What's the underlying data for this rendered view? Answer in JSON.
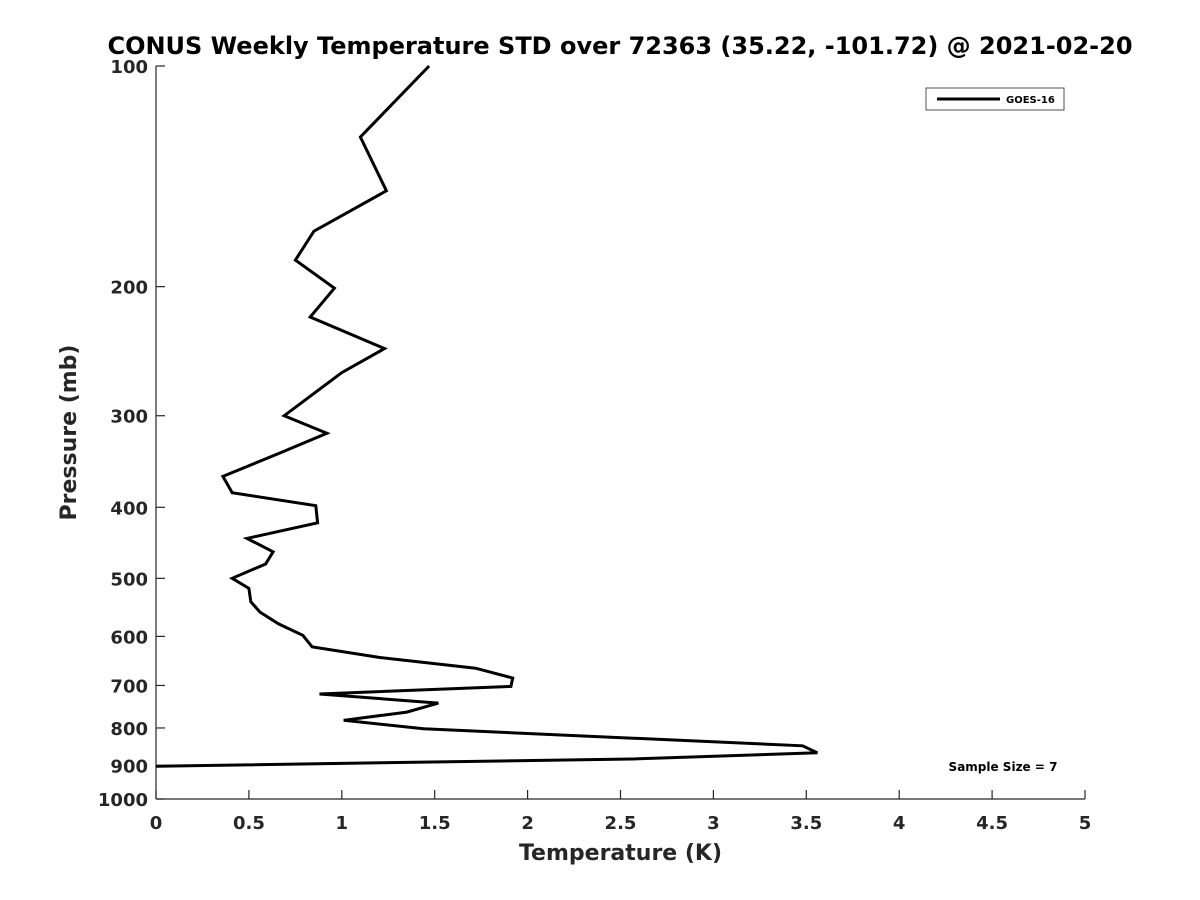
{
  "chart_data": {
    "type": "line",
    "title": "CONUS Weekly Temperature STD over 72363 (35.22, -101.72) @ 2021-02-20",
    "xlabel": "Temperature (K)",
    "ylabel": "Pressure (mb)",
    "xlim": [
      0,
      5
    ],
    "ylim": [
      100,
      1000
    ],
    "y_scale": "log",
    "y_reversed": true,
    "x_ticks": [
      0,
      0.5,
      1,
      1.5,
      2,
      2.5,
      3,
      3.5,
      4,
      4.5,
      5
    ],
    "x_tick_labels": [
      "0",
      "0.5",
      "1",
      "1.5",
      "2",
      "2.5",
      "3",
      "3.5",
      "4",
      "4.5",
      "5"
    ],
    "y_ticks": [
      100,
      200,
      300,
      400,
      500,
      600,
      700,
      800,
      900,
      1000
    ],
    "y_tick_labels": [
      "100",
      "200",
      "300",
      "400",
      "500",
      "600",
      "700",
      "800",
      "900",
      "1000"
    ],
    "grid": false,
    "legend_position": "top-right",
    "annotation": "Sample Size = 7",
    "series": [
      {
        "name": "GOES-16",
        "color": "#000000",
        "points": [
          {
            "t": 1.47,
            "p": 100
          },
          {
            "t": 1.1,
            "p": 125
          },
          {
            "t": 1.24,
            "p": 148
          },
          {
            "t": 0.85,
            "p": 168
          },
          {
            "t": 0.75,
            "p": 184
          },
          {
            "t": 0.96,
            "p": 201
          },
          {
            "t": 0.83,
            "p": 220
          },
          {
            "t": 1.23,
            "p": 243
          },
          {
            "t": 1.0,
            "p": 262
          },
          {
            "t": 0.69,
            "p": 300
          },
          {
            "t": 0.92,
            "p": 317
          },
          {
            "t": 0.67,
            "p": 337
          },
          {
            "t": 0.36,
            "p": 363
          },
          {
            "t": 0.41,
            "p": 382
          },
          {
            "t": 0.86,
            "p": 398
          },
          {
            "t": 0.87,
            "p": 420
          },
          {
            "t": 0.49,
            "p": 441
          },
          {
            "t": 0.63,
            "p": 460
          },
          {
            "t": 0.59,
            "p": 478
          },
          {
            "t": 0.41,
            "p": 500
          },
          {
            "t": 0.5,
            "p": 516
          },
          {
            "t": 0.51,
            "p": 538
          },
          {
            "t": 0.56,
            "p": 556
          },
          {
            "t": 0.66,
            "p": 577
          },
          {
            "t": 0.79,
            "p": 598
          },
          {
            "t": 0.84,
            "p": 620
          },
          {
            "t": 1.2,
            "p": 641
          },
          {
            "t": 1.72,
            "p": 663
          },
          {
            "t": 1.92,
            "p": 684
          },
          {
            "t": 1.91,
            "p": 702
          },
          {
            "t": 0.88,
            "p": 719
          },
          {
            "t": 1.52,
            "p": 740
          },
          {
            "t": 1.35,
            "p": 761
          },
          {
            "t": 1.01,
            "p": 781
          },
          {
            "t": 1.44,
            "p": 802
          },
          {
            "t": 3.48,
            "p": 846
          },
          {
            "t": 3.56,
            "p": 865
          },
          {
            "t": 2.56,
            "p": 882
          },
          {
            "t": 0.0,
            "p": 902
          }
        ]
      }
    ]
  }
}
